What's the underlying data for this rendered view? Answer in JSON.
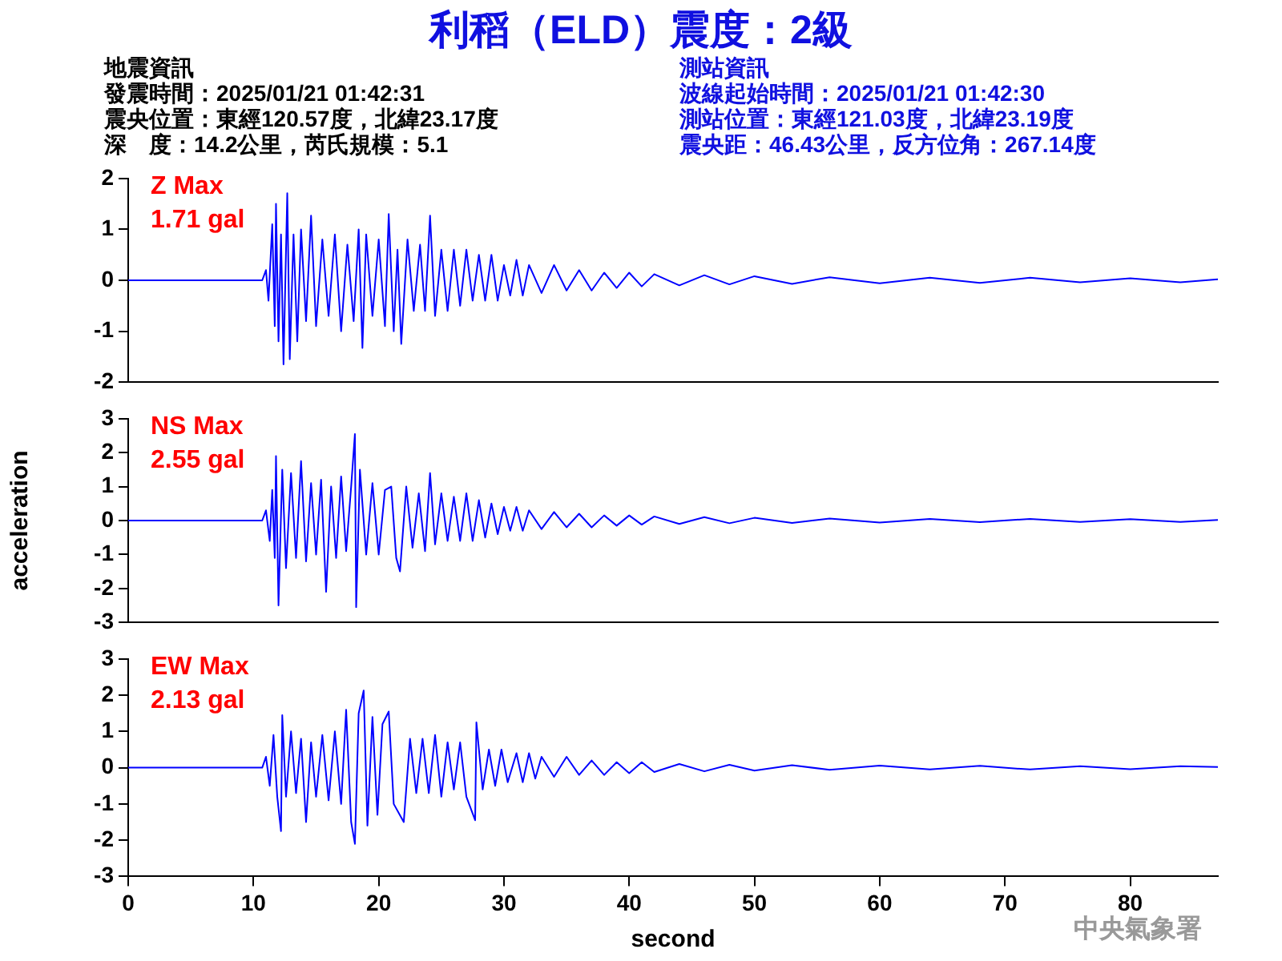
{
  "chart_data": [
    {
      "type": "line",
      "title": "利稻（ELD）震度：2級",
      "annotations": [
        "Z Max",
        "1.71 gal",
        "地震資訊",
        "發震時間：2025/01/21 01:42:31",
        "震央位置：東經120.57度，北緯23.17度",
        "深　度：14.2公里，芮氏規模：5.1",
        "測站資訊",
        "波線起始時間：2025/01/21 01:42:30",
        "測站位置：東經121.03度，北緯23.19度",
        "震央距：46.43公里，反方位角：267.14度"
      ],
      "xlim": [
        0,
        87
      ],
      "ylim": [
        -2,
        2
      ],
      "yticks": [
        -2,
        -1,
        0,
        1,
        2
      ],
      "tick_labels": "y",
      "grid": false,
      "legend": false,
      "series": [
        {
          "color": "#0000ff",
          "x": [
            0,
            10.7,
            11.0,
            11.2,
            11.5,
            11.7,
            11.8,
            12.0,
            12.2,
            12.4,
            12.7,
            12.9,
            13.2,
            13.5,
            13.8,
            14.2,
            14.6,
            15.0,
            15.5,
            16.0,
            16.5,
            17.0,
            17.5,
            18.0,
            18.4,
            18.7,
            19.0,
            19.5,
            20.0,
            20.5,
            20.8,
            21.2,
            21.5,
            21.8,
            22.3,
            22.8,
            23.3,
            23.7,
            24.1,
            24.5,
            25,
            25.5,
            26,
            26.5,
            27,
            27.5,
            28,
            28.5,
            29,
            29.5,
            30,
            30.5,
            31,
            31.5,
            32,
            33,
            34,
            35,
            36,
            37,
            38,
            39,
            40,
            41,
            42,
            44,
            46,
            48,
            50,
            53,
            56,
            60,
            64,
            68,
            72,
            76,
            80,
            84,
            87
          ],
          "values": [
            0,
            0,
            0.2,
            -0.4,
            1.1,
            -0.9,
            1.5,
            -1.2,
            0.9,
            -1.65,
            1.71,
            -1.55,
            0.9,
            -1.2,
            1.0,
            -0.8,
            1.27,
            -0.9,
            0.8,
            -0.7,
            0.9,
            -1.0,
            0.7,
            -0.8,
            1.0,
            -1.33,
            0.9,
            -0.7,
            0.8,
            -0.9,
            1.3,
            -1.0,
            0.6,
            -1.25,
            0.8,
            -0.6,
            0.7,
            -0.6,
            1.27,
            -0.7,
            0.6,
            -0.6,
            0.6,
            -0.5,
            0.6,
            -0.4,
            0.5,
            -0.4,
            0.5,
            -0.4,
            0.3,
            -0.3,
            0.4,
            -0.3,
            0.3,
            -0.25,
            0.3,
            -0.2,
            0.2,
            -0.2,
            0.15,
            -0.15,
            0.15,
            -0.12,
            0.12,
            -0.1,
            0.1,
            -0.08,
            0.08,
            -0.07,
            0.06,
            -0.06,
            0.05,
            -0.05,
            0.05,
            -0.04,
            0.04,
            -0.04,
            0.02
          ]
        }
      ]
    },
    {
      "type": "line",
      "ylabel": "acceleration",
      "annotations": [
        "NS Max",
        "2.55 gal"
      ],
      "xlim": [
        0,
        87
      ],
      "ylim": [
        -3,
        3
      ],
      "yticks": [
        -3,
        -2,
        -1,
        0,
        1,
        2,
        3
      ],
      "tick_labels": "y",
      "grid": false,
      "legend": false,
      "series": [
        {
          "color": "#0000ff",
          "x": [
            0,
            10.7,
            11.0,
            11.3,
            11.5,
            11.7,
            11.8,
            12.0,
            12.3,
            12.6,
            13.0,
            13.4,
            13.8,
            14.2,
            14.6,
            15.0,
            15.4,
            15.8,
            16.2,
            16.6,
            17.0,
            17.4,
            17.8,
            18.1,
            18.2,
            18.5,
            19.0,
            19.5,
            20.0,
            20.5,
            21.0,
            21.4,
            21.7,
            22.2,
            22.7,
            23.2,
            23.7,
            24.1,
            24.5,
            25,
            25.5,
            26,
            26.5,
            27,
            27.5,
            28,
            28.5,
            29,
            29.5,
            30,
            30.5,
            31,
            31.5,
            32,
            33,
            34,
            35,
            36,
            37,
            38,
            39,
            40,
            41,
            42,
            44,
            46,
            48,
            50,
            53,
            56,
            60,
            64,
            68,
            72,
            76,
            80,
            84,
            87
          ],
          "values": [
            0,
            0,
            0.3,
            -0.6,
            0.9,
            -1.1,
            1.9,
            -2.5,
            1.5,
            -1.4,
            1.4,
            -1.1,
            1.75,
            -1.2,
            1.1,
            -1.0,
            1.2,
            -2.1,
            1.0,
            -1.1,
            1.3,
            -0.9,
            1.0,
            2.55,
            -2.55,
            1.5,
            -1.0,
            1.1,
            -1.0,
            0.9,
            1.0,
            -1.1,
            -1.5,
            1.0,
            -0.8,
            0.8,
            -0.9,
            1.4,
            -0.7,
            0.8,
            -0.6,
            0.7,
            -0.6,
            0.8,
            -0.6,
            0.6,
            -0.5,
            0.5,
            -0.4,
            0.4,
            -0.3,
            0.4,
            -0.3,
            0.3,
            -0.25,
            0.25,
            -0.2,
            0.2,
            -0.2,
            0.15,
            -0.15,
            0.15,
            -0.12,
            0.12,
            -0.1,
            0.1,
            -0.08,
            0.08,
            -0.07,
            0.06,
            -0.06,
            0.05,
            -0.05,
            0.05,
            -0.04,
            0.04,
            -0.04,
            0.02
          ]
        }
      ]
    },
    {
      "type": "line",
      "xlabel": "second",
      "annotations": [
        "EW Max",
        "2.13 gal",
        "中央氣象署"
      ],
      "xlim": [
        0,
        87
      ],
      "xticks": [
        0,
        10,
        20,
        30,
        40,
        50,
        60,
        70,
        80
      ],
      "ylim": [
        -3,
        3
      ],
      "yticks": [
        -3,
        -2,
        -1,
        0,
        1,
        2,
        3
      ],
      "grid": false,
      "legend": false,
      "series": [
        {
          "color": "#0000ff",
          "x": [
            0,
            10.7,
            11.0,
            11.3,
            11.6,
            11.9,
            12.2,
            12.3,
            12.6,
            13.0,
            13.4,
            13.8,
            14.2,
            14.6,
            15.0,
            15.5,
            16.0,
            16.5,
            17.0,
            17.4,
            17.8,
            18.1,
            18.4,
            18.8,
            19.1,
            19.5,
            19.9,
            20.3,
            20.8,
            21.2,
            22.0,
            22.5,
            23.0,
            23.5,
            24.0,
            24.5,
            25.0,
            25.5,
            26.0,
            26.5,
            27.0,
            27.7,
            27.8,
            28.3,
            28.8,
            29.3,
            29.8,
            30.3,
            31,
            31.5,
            32,
            32.5,
            33,
            34,
            35,
            36,
            37,
            38,
            39,
            40,
            41,
            42,
            44,
            46,
            48,
            50,
            53,
            56,
            60,
            64,
            68,
            72,
            76,
            80,
            84,
            87
          ],
          "values": [
            0,
            0,
            0.3,
            -0.5,
            0.9,
            -0.8,
            -1.75,
            1.45,
            -0.8,
            1.0,
            -0.7,
            0.8,
            -1.5,
            0.7,
            -0.8,
            0.9,
            -0.9,
            1.0,
            -1.0,
            1.6,
            -1.5,
            -2.1,
            1.5,
            2.13,
            -1.6,
            1.4,
            -1.3,
            1.2,
            1.55,
            -1.0,
            -1.5,
            0.8,
            -0.7,
            0.8,
            -0.7,
            0.9,
            -0.8,
            0.7,
            -0.6,
            0.7,
            -0.8,
            -1.45,
            1.25,
            -0.6,
            0.5,
            -0.5,
            0.5,
            -0.4,
            0.4,
            -0.4,
            0.4,
            -0.3,
            0.3,
            -0.25,
            0.3,
            -0.2,
            0.2,
            -0.2,
            0.15,
            -0.15,
            0.15,
            -0.12,
            0.1,
            -0.1,
            0.08,
            -0.08,
            0.07,
            -0.06,
            0.06,
            -0.05,
            0.05,
            -0.05,
            0.04,
            -0.04,
            0.04,
            0.02
          ]
        }
      ]
    }
  ]
}
